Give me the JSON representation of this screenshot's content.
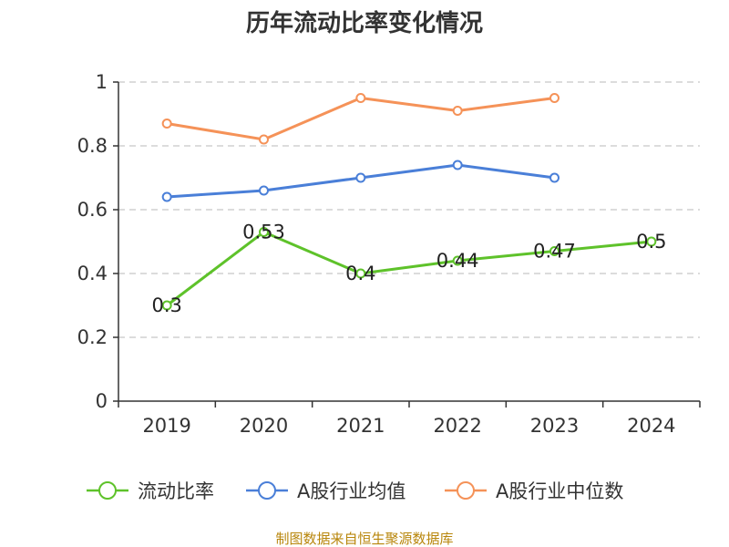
{
  "chart_data": {
    "type": "line",
    "title": "历年流动比率变化情况",
    "categories": [
      "2019",
      "2020",
      "2021",
      "2022",
      "2023",
      "2024"
    ],
    "ylim": [
      0,
      1
    ],
    "yticks": [
      "0",
      "0.2",
      "0.4",
      "0.6",
      "0.8",
      "1"
    ],
    "grid": true,
    "legend_position": "bottom",
    "series": [
      {
        "name": "流动比率",
        "color": "#5ec22a",
        "values": [
          0.3,
          0.53,
          0.4,
          0.44,
          0.47,
          0.5
        ],
        "labels": [
          "0.3",
          "0.53",
          "0.4",
          "0.44",
          "0.47",
          "0.5"
        ]
      },
      {
        "name": "A股行业均值",
        "color": "#4a7fd8",
        "values": [
          0.64,
          0.66,
          0.7,
          0.74,
          0.7,
          null
        ]
      },
      {
        "name": "A股行业中位数",
        "color": "#f59258",
        "values": [
          0.87,
          0.82,
          0.95,
          0.91,
          0.95,
          null
        ]
      }
    ],
    "source": "制图数据来自恒生聚源数据库"
  }
}
